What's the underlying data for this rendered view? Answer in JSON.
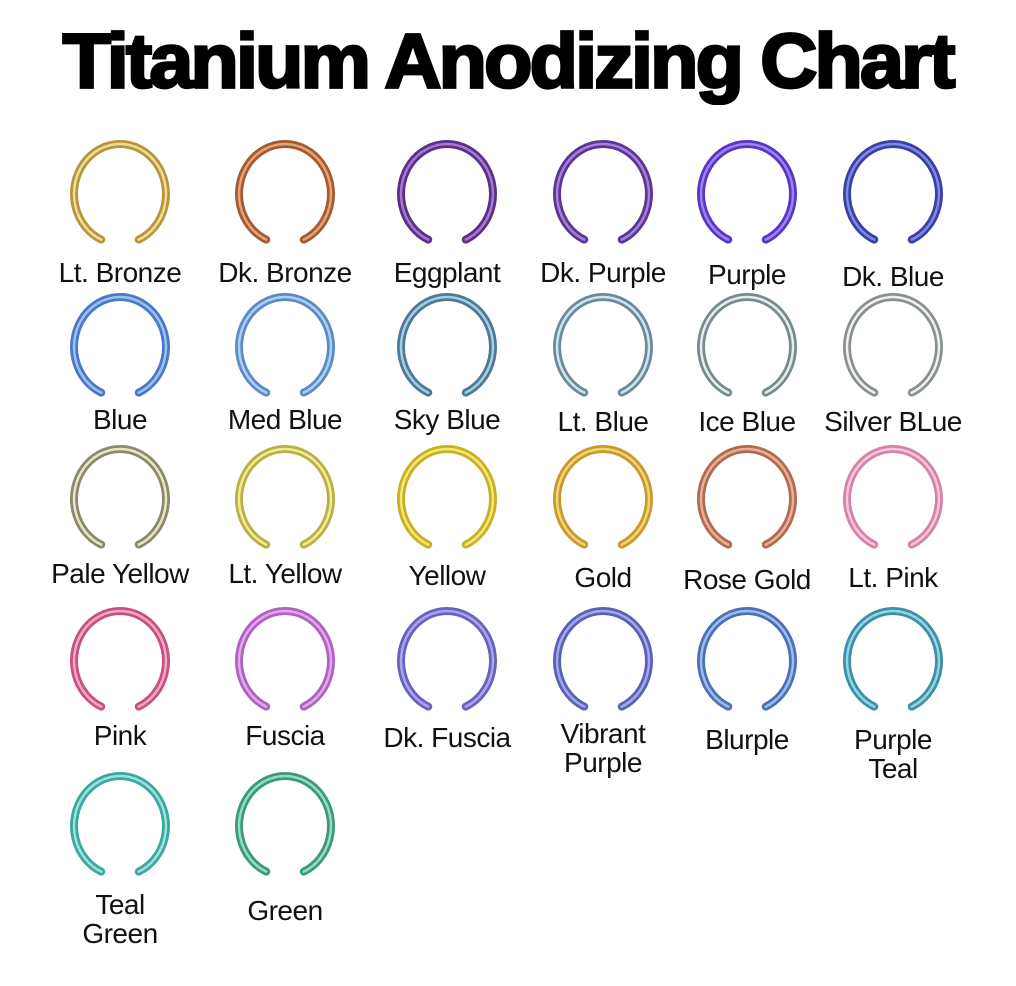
{
  "title": "Titanium Anodizing Chart",
  "swatches": [
    {
      "label": "Lt. Bronze",
      "color": "#b8953a",
      "highlight": "#f0dc9a"
    },
    {
      "label": "Dk. Bronze",
      "color": "#a8582e",
      "highlight": "#e0a57a"
    },
    {
      "label": "Eggplant",
      "color": "#5a2f8a",
      "highlight": "#a57ad0"
    },
    {
      "label": "Dk. Purple",
      "color": "#5b3596",
      "highlight": "#a283d8"
    },
    {
      "label": "Purple",
      "color": "#5a34c8",
      "highlight": "#9c85ee"
    },
    {
      "label": "Dk. Blue",
      "color": "#3840a8",
      "highlight": "#7f8ae0"
    },
    {
      "label": "Blue",
      "color": "#4a78c8",
      "highlight": "#9fc0f0"
    },
    {
      "label": "Med Blue",
      "color": "#5a8ac8",
      "highlight": "#b0d0f2"
    },
    {
      "label": "Sky Blue",
      "color": "#4a7a98",
      "highlight": "#a8cce0"
    },
    {
      "label": "Lt. Blue",
      "color": "#6a8a9a",
      "highlight": "#d0e4ee"
    },
    {
      "label": "Ice Blue",
      "color": "#7a8a8a",
      "highlight": "#e2eef0"
    },
    {
      "label": "Silver BLue",
      "color": "#8a9090",
      "highlight": "#eef2f2"
    },
    {
      "label": "Pale Yellow",
      "color": "#8a8a6a",
      "highlight": "#e8e4c8"
    },
    {
      "label": "Lt. Yellow",
      "color": "#b8b040",
      "highlight": "#f0ec98"
    },
    {
      "label": "Yellow",
      "color": "#c8b020",
      "highlight": "#f6e67a"
    },
    {
      "label": "Gold",
      "color": "#c89a28",
      "highlight": "#f2d47a"
    },
    {
      "label": "Rose Gold",
      "color": "#b06a50",
      "highlight": "#e8b098"
    },
    {
      "label": "Lt. Pink",
      "color": "#d880a8",
      "highlight": "#f6c8dc"
    },
    {
      "label": "Pink",
      "color": "#c85080",
      "highlight": "#f0a8c4"
    },
    {
      "label": "Fuscia",
      "color": "#b060c0",
      "highlight": "#e0aaea"
    },
    {
      "label": "Dk. Fuscia",
      "color": "#6a60c0",
      "highlight": "#aaa6ea"
    },
    {
      "label": "Vibrant\nPurple",
      "color": "#5a60b8",
      "highlight": "#a4a8e8"
    },
    {
      "label": "Blurple",
      "color": "#4a70b8",
      "highlight": "#a0bce8"
    },
    {
      "label": "Purple\nTeal",
      "color": "#3a90a8",
      "highlight": "#98d4e0"
    },
    {
      "label": "Teal\nGreen",
      "color": "#3aa8a0",
      "highlight": "#a0e0d8"
    },
    {
      "label": "Green",
      "color": "#3a9a78",
      "highlight": "#98dcc0"
    }
  ]
}
